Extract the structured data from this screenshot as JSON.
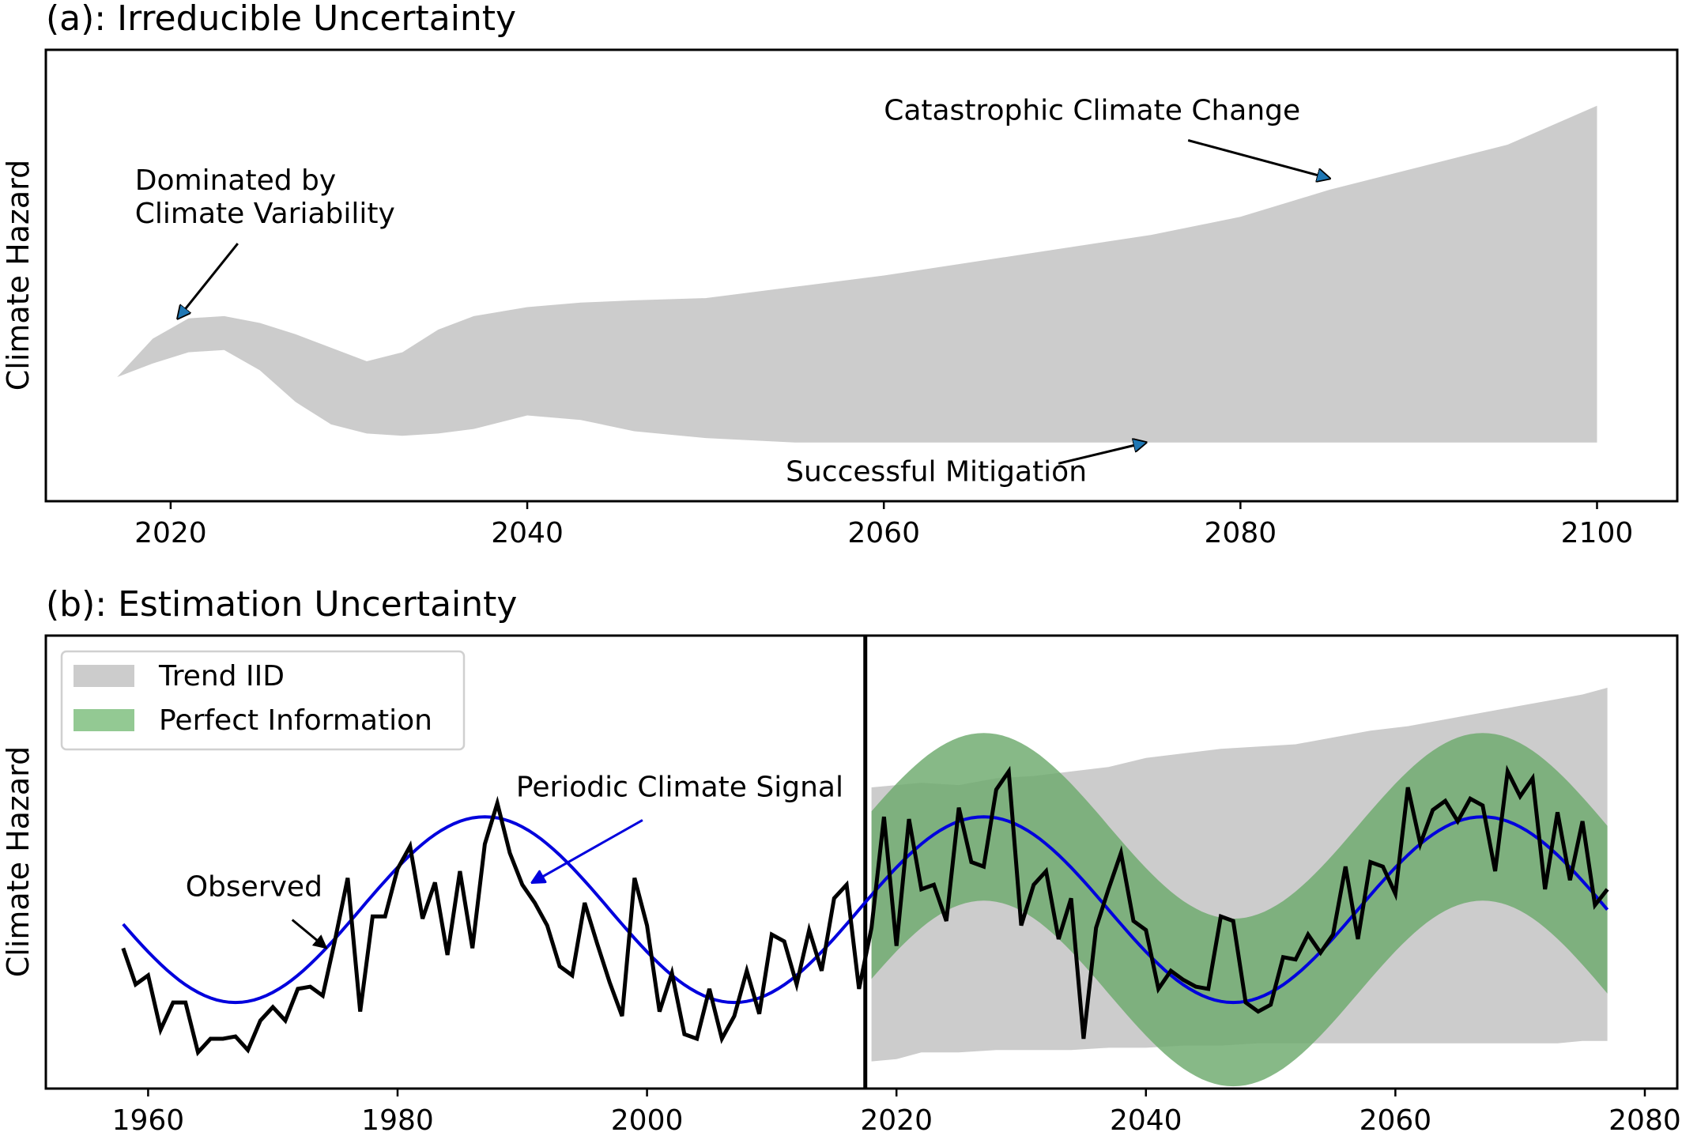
{
  "chart_data": [
    {
      "type": "area",
      "title": "(a): Irreducible Uncertainty",
      "ylabel": "Climate Hazard",
      "xlabel": "",
      "xlim": [
        2013,
        2104.5
      ],
      "ylim": [
        0,
        1
      ],
      "xticks": [
        2020,
        2040,
        2060,
        2080,
        2100
      ],
      "grid": false,
      "band": {
        "x": [
          2017,
          2019,
          2021,
          2023,
          2025,
          2027,
          2029,
          2031,
          2033,
          2035,
          2037,
          2040,
          2043,
          2046,
          2050,
          2055,
          2060,
          2065,
          2070,
          2075,
          2080,
          2085,
          2090,
          2095,
          2100
        ],
        "upper": [
          0.275,
          0.36,
          0.405,
          0.41,
          0.395,
          0.37,
          0.34,
          0.31,
          0.33,
          0.38,
          0.41,
          0.43,
          0.44,
          0.445,
          0.45,
          0.475,
          0.5,
          0.53,
          0.56,
          0.59,
          0.63,
          0.69,
          0.74,
          0.79,
          0.876
        ],
        "lower": [
          0.275,
          0.305,
          0.33,
          0.335,
          0.29,
          0.22,
          0.17,
          0.15,
          0.145,
          0.15,
          0.16,
          0.19,
          0.18,
          0.155,
          0.14,
          0.13,
          0.13,
          0.13,
          0.13,
          0.13,
          0.13,
          0.13,
          0.13,
          0.13,
          0.13
        ]
      },
      "annotations": [
        {
          "text": "Dominated by Climate Variability",
          "lines": [
            "Dominated by",
            "Climate Variability"
          ],
          "x": 2018,
          "y": 0.69,
          "arrow_x": 2020.4,
          "arrow_y": 0.405
        },
        {
          "text": "Catastrophic Climate Change",
          "x": 2060,
          "y": 0.845,
          "arrow_x": 2085,
          "arrow_y": 0.715
        },
        {
          "text": "Successful Mitigation",
          "x": 2054.5,
          "y": 0.045,
          "arrow_x": 2074.7,
          "arrow_y": 0.13
        }
      ]
    },
    {
      "type": "line",
      "title": "(b): Estimation Uncertainty",
      "ylabel": "Climate Hazard",
      "xlabel": "",
      "xlim": [
        1951.8,
        2082.6
      ],
      "ylim": [
        0,
        1
      ],
      "xticks": [
        1960,
        1980,
        2000,
        2020,
        2040,
        2060,
        2080
      ],
      "grid": false,
      "vline_x": 2017.5,
      "legend": {
        "placement": "top-left",
        "entries": [
          "Trend IID",
          "Perfect Information"
        ]
      },
      "colors": {
        "trend_iid": "#cccccc",
        "perfect_information": "#7aaf7a",
        "legend_green": "#93c993",
        "signal": "#0000dd",
        "observed": "#000000"
      },
      "series": [
        {
          "name": "Observed",
          "x": [
            1958,
            1959,
            1960,
            1961,
            1962,
            1963,
            1964,
            1965,
            1966,
            1967,
            1968,
            1969,
            1970,
            1971,
            1972,
            1973,
            1974,
            1975,
            1976,
            1977,
            1978,
            1979,
            1980,
            1981,
            1982,
            1983,
            1984,
            1985,
            1986,
            1987,
            1988,
            1989,
            1990,
            1991,
            1992,
            1993,
            1994,
            1995,
            1996,
            1997,
            1998,
            1999,
            2000,
            2001,
            2002,
            2003,
            2004,
            2005,
            2006,
            2007,
            2008,
            2009,
            2010,
            2011,
            2012,
            2013,
            2014,
            2015,
            2016,
            2017,
            2018,
            2019,
            2020,
            2021,
            2022,
            2023,
            2024,
            2025,
            2026,
            2027,
            2028,
            2029,
            2030,
            2031,
            2032,
            2033,
            2034,
            2035,
            2036,
            2037,
            2038,
            2039,
            2040,
            2041,
            2042,
            2043,
            2044,
            2045,
            2046,
            2047,
            2048,
            2049,
            2050,
            2051,
            2052,
            2053,
            2054,
            2055,
            2056,
            2057,
            2058,
            2059,
            2060,
            2061,
            2062,
            2063,
            2064,
            2065,
            2066,
            2067,
            2068,
            2069,
            2070,
            2071,
            2072,
            2073,
            2074,
            2075,
            2076,
            2077
          ],
          "values": [
            0.31,
            0.23,
            0.25,
            0.13,
            0.19,
            0.19,
            0.08,
            0.11,
            0.11,
            0.115,
            0.085,
            0.15,
            0.18,
            0.15,
            0.22,
            0.225,
            0.205,
            0.33,
            0.465,
            0.17,
            0.38,
            0.38,
            0.485,
            0.535,
            0.375,
            0.455,
            0.295,
            0.48,
            0.31,
            0.54,
            0.63,
            0.52,
            0.45,
            0.41,
            0.36,
            0.27,
            0.25,
            0.41,
            0.32,
            0.235,
            0.16,
            0.465,
            0.36,
            0.17,
            0.255,
            0.12,
            0.11,
            0.22,
            0.11,
            0.16,
            0.26,
            0.165,
            0.34,
            0.325,
            0.23,
            0.35,
            0.26,
            0.42,
            0.45,
            0.22,
            0.355,
            0.6,
            0.315,
            0.595,
            0.44,
            0.45,
            0.37,
            0.62,
            0.5,
            0.49,
            0.66,
            0.7,
            0.36,
            0.45,
            0.48,
            0.33,
            0.42,
            0.11,
            0.355,
            0.44,
            0.52,
            0.37,
            0.35,
            0.22,
            0.26,
            0.24,
            0.225,
            0.22,
            0.38,
            0.37,
            0.19,
            0.17,
            0.185,
            0.29,
            0.285,
            0.34,
            0.3,
            0.34,
            0.49,
            0.33,
            0.5,
            0.49,
            0.43,
            0.665,
            0.54,
            0.615,
            0.635,
            0.59,
            0.64,
            0.625,
            0.48,
            0.7,
            0.645,
            0.685,
            0.44,
            0.61,
            0.46,
            0.59,
            0.405,
            0.44
          ]
        },
        {
          "name": "Periodic Climate Signal",
          "function": "0.395 + 0.205*sin(2*pi*(x - 1977)/40)",
          "x_range": [
            1958,
            2077
          ]
        }
      ],
      "bands": [
        {
          "name": "Trend IID",
          "x": [
            2018,
            2020,
            2022,
            2025,
            2028,
            2031,
            2034,
            2037,
            2040,
            2043,
            2046,
            2049,
            2052,
            2055,
            2058,
            2061,
            2064,
            2067,
            2070,
            2073,
            2075,
            2077
          ],
          "upper": [
            0.665,
            0.67,
            0.675,
            0.67,
            0.685,
            0.69,
            0.7,
            0.71,
            0.73,
            0.74,
            0.75,
            0.755,
            0.76,
            0.775,
            0.79,
            0.8,
            0.815,
            0.83,
            0.845,
            0.86,
            0.87,
            0.885
          ],
          "lower": [
            0.06,
            0.065,
            0.08,
            0.08,
            0.085,
            0.085,
            0.085,
            0.09,
            0.09,
            0.095,
            0.095,
            0.1,
            0.1,
            0.1,
            0.1,
            0.1,
            0.1,
            0.1,
            0.1,
            0.1,
            0.105,
            0.105
          ]
        },
        {
          "name": "Perfect Information",
          "center_function": "0.395 + 0.205*sin(2*pi*(x - 1977)/40)",
          "half_width": 0.185,
          "x_range": [
            2018,
            2077
          ]
        }
      ],
      "annotations": [
        {
          "text": "Periodic Climate Signal",
          "x": 1989.5,
          "y": 0.645,
          "arrow_x": 1990.8,
          "arrow_y": 0.455,
          "color": "#0000dd"
        },
        {
          "text": "Observed",
          "x": 1963,
          "y": 0.425,
          "arrow_x": 1974.3,
          "arrow_y": 0.31
        }
      ]
    }
  ]
}
